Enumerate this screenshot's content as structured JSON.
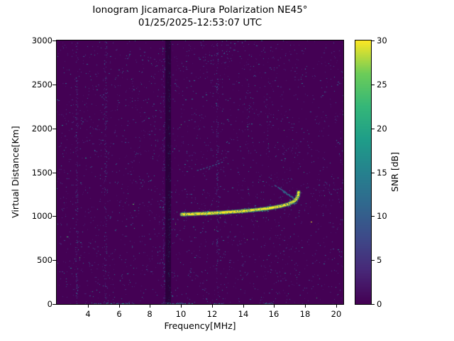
{
  "chart_data": {
    "type": "heatmap",
    "title": "Ionogram Jicamarca-Piura Polarization NE45°",
    "subtitle": "01/25/2025-12:53:07 UTC",
    "xlabel": "Frequency[MHz]",
    "ylabel": "Virtual Distance[Km]",
    "xlim": [
      2.0,
      20.46
    ],
    "ylim": [
      0,
      3000
    ],
    "xticks": [
      4,
      6,
      8,
      10,
      12,
      14,
      16,
      18,
      20
    ],
    "yticks": [
      0,
      500,
      1000,
      1500,
      2000,
      2500,
      3000
    ],
    "grid": false,
    "colorbar": {
      "label": "SNR [dB]",
      "min": 0,
      "max": 30,
      "ticks": [
        0,
        5,
        10,
        15,
        20,
        25,
        30
      ],
      "colormap": "viridis"
    },
    "noise": {
      "speckle_density": 0.018,
      "snr_range_db": [
        2,
        15
      ],
      "bright_fraction": 0.02
    },
    "interference_columns_mhz": [
      3.3,
      5.15,
      8.9,
      9.25,
      12.35
    ],
    "dark_band_mhz": [
      9.0,
      9.35
    ],
    "features": {
      "f_trace": {
        "name": "F-layer echo trace",
        "snr_db": 30,
        "points": [
          [
            10.05,
            1020
          ],
          [
            10.4,
            1022
          ],
          [
            10.8,
            1025
          ],
          [
            11.2,
            1028
          ],
          [
            11.6,
            1031
          ],
          [
            12.0,
            1035
          ],
          [
            12.4,
            1039
          ],
          [
            12.8,
            1043
          ],
          [
            13.2,
            1048
          ],
          [
            13.6,
            1053
          ],
          [
            14.0,
            1059
          ],
          [
            14.4,
            1065
          ],
          [
            14.8,
            1072
          ],
          [
            15.2,
            1080
          ],
          [
            15.6,
            1089
          ],
          [
            16.0,
            1100
          ],
          [
            16.3,
            1110
          ],
          [
            16.6,
            1122
          ],
          [
            16.9,
            1137
          ],
          [
            17.1,
            1152
          ],
          [
            17.3,
            1172
          ],
          [
            17.45,
            1200
          ],
          [
            17.55,
            1235
          ],
          [
            17.58,
            1272
          ]
        ]
      },
      "spread_echoes": [
        {
          "snr_db": 14,
          "points": [
            [
              16.35,
              1315
            ],
            [
              17.3,
              1205
            ]
          ]
        },
        {
          "snr_db": 12,
          "points": [
            [
              16.6,
              1275
            ],
            [
              17.4,
              1185
            ]
          ]
        },
        {
          "snr_db": 10,
          "points": [
            [
              16.05,
              1350
            ],
            [
              16.75,
              1275
            ]
          ]
        }
      ],
      "second_trace": {
        "snr_db": 11,
        "points": [
          [
            11.05,
            1520
          ],
          [
            11.9,
            1565
          ],
          [
            12.75,
            1620
          ]
        ]
      },
      "bottom_noise_segments_mhz": [
        [
          4.2,
          6.7
        ],
        [
          8.8,
          10.8
        ],
        [
          11.9,
          12.8
        ],
        [
          15.3,
          15.9
        ]
      ]
    }
  }
}
